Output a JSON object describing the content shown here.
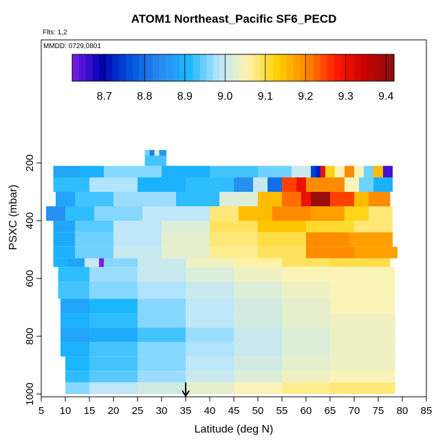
{
  "chart_data": {
    "type": "heatmap",
    "title": "ATOM1 Northeast_Pacific SF6_PECD",
    "flights_label": "Flts: 1,2",
    "mmdd_label": "MMDD: 0729,0801",
    "xlabel": "Latitude (deg N)",
    "ylabel": "PSXC (mbar)",
    "xlim": [
      5,
      85
    ],
    "ylim": [
      1000,
      0
    ],
    "x_ticks": [
      5,
      10,
      15,
      20,
      25,
      30,
      35,
      40,
      45,
      50,
      55,
      60,
      65,
      70,
      75,
      80,
      85
    ],
    "y_ticks": [
      200,
      400,
      600,
      800,
      1000
    ],
    "colorbar": {
      "range": [
        8.62,
        9.42
      ],
      "ticks": [
        8.7,
        8.8,
        8.9,
        9.0,
        9.1,
        9.2,
        9.3,
        9.4
      ],
      "tick_labels": [
        "8.7",
        "8.8",
        "8.9",
        "9.0",
        "9.1",
        "9.2",
        "9.3",
        "9.4"
      ],
      "colors": [
        "#7b1fe8",
        "#0000b4",
        "#0055dd",
        "#2a8af0",
        "#1ab8ff",
        "#b8e6ff",
        "#fff4b0",
        "#ffd000",
        "#ff8a00",
        "#ff1a00",
        "#c80000",
        "#8a1010"
      ]
    },
    "arrow_latitude": 35,
    "grid": false,
    "layers": [
      {
        "p_top": 155,
        "p_bottom": 175,
        "lat_min": 26.5,
        "lat_max": 31,
        "cells": [
          [
            26.5,
            27.5,
            8.95
          ],
          [
            27.5,
            28.5,
            8.82
          ],
          [
            28.5,
            29.5,
            9.02
          ],
          [
            29.5,
            31,
            8.86
          ]
        ]
      },
      {
        "p_top": 175,
        "p_bottom": 210,
        "lat_min": 26.5,
        "lat_max": 31,
        "cells": [
          [
            26.5,
            31,
            8.93
          ]
        ]
      },
      {
        "p_top": 210,
        "p_bottom": 250,
        "lat_min": 7.5,
        "lat_max": 78,
        "cells": [
          [
            7.5,
            13,
            8.88
          ],
          [
            13,
            18,
            8.9
          ],
          [
            18,
            30,
            8.96
          ],
          [
            30,
            40,
            8.9
          ],
          [
            40,
            50,
            8.93
          ],
          [
            50,
            57,
            8.95
          ],
          [
            57,
            61,
            9.0
          ],
          [
            61,
            62,
            8.75
          ],
          [
            62,
            63,
            8.72
          ],
          [
            63,
            64,
            9.3
          ],
          [
            64,
            66,
            9.12
          ],
          [
            66,
            68,
            9.05
          ],
          [
            68,
            70,
            9.2
          ],
          [
            70,
            72,
            9.05
          ],
          [
            72,
            74,
            8.95
          ],
          [
            74,
            76,
            9.15
          ],
          [
            76,
            78,
            8.65
          ]
        ]
      },
      {
        "p_top": 250,
        "p_bottom": 300,
        "lat_min": 7.5,
        "lat_max": 78,
        "cells": [
          [
            7.5,
            15,
            8.92
          ],
          [
            15,
            25,
            8.98
          ],
          [
            25,
            35,
            8.9
          ],
          [
            35,
            45,
            8.92
          ],
          [
            45,
            49,
            8.85
          ],
          [
            49,
            52,
            9.0
          ],
          [
            52,
            55,
            8.8
          ],
          [
            55,
            58,
            9.25
          ],
          [
            58,
            60,
            9.3
          ],
          [
            60,
            68,
            9.2
          ],
          [
            68,
            71,
            9.05
          ],
          [
            71,
            74,
            8.95
          ],
          [
            74,
            78,
            8.9
          ]
        ]
      },
      {
        "p_top": 300,
        "p_bottom": 350,
        "lat_min": 8,
        "lat_max": 77.5,
        "cells": [
          [
            8,
            12,
            8.88
          ],
          [
            12,
            20,
            8.93
          ],
          [
            20,
            33,
            8.97
          ],
          [
            33,
            42,
            8.92
          ],
          [
            42,
            50,
            9.02
          ],
          [
            50,
            55,
            9.15
          ],
          [
            55,
            59,
            9.22
          ],
          [
            59,
            61,
            9.3
          ],
          [
            61,
            65,
            9.4
          ],
          [
            65,
            70,
            9.25
          ],
          [
            70,
            73,
            9.15
          ],
          [
            73,
            77.5,
            9.2
          ]
        ]
      },
      {
        "p_top": 350,
        "p_bottom": 400,
        "lat_min": 6,
        "lat_max": 78,
        "cells": [
          [
            6,
            10,
            8.85
          ],
          [
            10,
            16,
            8.92
          ],
          [
            16,
            26,
            8.96
          ],
          [
            26,
            40,
            8.99
          ],
          [
            40,
            46,
            9.08
          ],
          [
            46,
            53,
            9.15
          ],
          [
            53,
            61,
            9.2
          ],
          [
            61,
            68,
            9.18
          ],
          [
            68,
            73,
            9.12
          ],
          [
            73,
            78,
            9.08
          ]
        ]
      },
      {
        "p_top": 400,
        "p_bottom": 440,
        "lat_min": 7.5,
        "lat_max": 78,
        "cells": [
          [
            7.5,
            12,
            8.88
          ],
          [
            12,
            20,
            8.94
          ],
          [
            20,
            30,
            8.99
          ],
          [
            30,
            40,
            9.02
          ],
          [
            40,
            50,
            9.09
          ],
          [
            50,
            60,
            9.14
          ],
          [
            60,
            70,
            9.11
          ],
          [
            70,
            78,
            9.08
          ]
        ]
      },
      {
        "p_top": 440,
        "p_bottom": 490,
        "lat_min": 7.5,
        "lat_max": 78,
        "cells": [
          [
            7.5,
            12,
            8.89
          ],
          [
            12,
            20,
            8.95
          ],
          [
            20,
            30,
            8.99
          ],
          [
            30,
            40,
            9.03
          ],
          [
            40,
            50,
            9.08
          ],
          [
            50,
            60,
            9.1
          ],
          [
            60,
            69,
            9.2
          ],
          [
            69,
            78,
            9.18
          ]
        ]
      },
      {
        "p_top": 490,
        "p_bottom": 530,
        "lat_min": 7.5,
        "lat_max": 79,
        "cells": [
          [
            7.5,
            12,
            8.9
          ],
          [
            12,
            20,
            8.95
          ],
          [
            20,
            30,
            9.0
          ],
          [
            30,
            40,
            9.03
          ],
          [
            40,
            50,
            9.07
          ],
          [
            50,
            60,
            9.09
          ],
          [
            60,
            70,
            9.2
          ],
          [
            70,
            79,
            9.18
          ]
        ]
      },
      {
        "p_top": 530,
        "p_bottom": 560,
        "lat_min": 7.5,
        "lat_max": 77.5,
        "cells": [
          [
            7.5,
            10.5,
            8.9
          ],
          [
            10.5,
            14,
            8.88
          ],
          [
            14,
            17,
            9.0
          ],
          [
            17,
            18,
            8.62
          ],
          [
            18,
            25,
            8.96
          ],
          [
            25,
            35,
            9.0
          ],
          [
            35,
            45,
            9.04
          ],
          [
            45,
            55,
            9.06
          ],
          [
            55,
            65,
            9.09
          ],
          [
            65,
            77.5,
            9.1
          ]
        ]
      },
      {
        "p_top": 560,
        "p_bottom": 610,
        "lat_min": 8.5,
        "lat_max": 78.5,
        "cells": [
          [
            8.5,
            15,
            8.92
          ],
          [
            15,
            25,
            8.97
          ],
          [
            25,
            35,
            9.0
          ],
          [
            35,
            45,
            9.02
          ],
          [
            45,
            55,
            9.04
          ],
          [
            55,
            65,
            9.05
          ],
          [
            65,
            78.5,
            9.05
          ]
        ]
      },
      {
        "p_top": 610,
        "p_bottom": 670,
        "lat_min": 8.5,
        "lat_max": 78.5,
        "cells": [
          [
            8.5,
            15,
            8.93
          ],
          [
            15,
            25,
            8.96
          ],
          [
            25,
            35,
            8.98
          ],
          [
            35,
            45,
            9.0
          ],
          [
            45,
            55,
            9.02
          ],
          [
            55,
            65,
            9.04
          ],
          [
            65,
            78.5,
            9.05
          ]
        ]
      },
      {
        "p_top": 670,
        "p_bottom": 720,
        "lat_min": 9,
        "lat_max": 78.5,
        "cells": [
          [
            9,
            15,
            8.88
          ],
          [
            15,
            25,
            8.91
          ],
          [
            25,
            35,
            8.96
          ],
          [
            35,
            45,
            8.99
          ],
          [
            45,
            55,
            9.01
          ],
          [
            55,
            65,
            9.03
          ],
          [
            65,
            78.5,
            9.05
          ]
        ]
      },
      {
        "p_top": 720,
        "p_bottom": 770,
        "lat_min": 9,
        "lat_max": 78.5,
        "cells": [
          [
            9,
            15,
            8.9
          ],
          [
            15,
            25,
            8.92
          ],
          [
            25,
            35,
            8.96
          ],
          [
            35,
            45,
            8.99
          ],
          [
            45,
            55,
            9.01
          ],
          [
            55,
            65,
            9.03
          ],
          [
            65,
            78.5,
            9.04
          ]
        ]
      },
      {
        "p_top": 770,
        "p_bottom": 820,
        "lat_min": 9,
        "lat_max": 78.5,
        "cells": [
          [
            9,
            15,
            8.88
          ],
          [
            15,
            25,
            8.89
          ],
          [
            25,
            35,
            8.93
          ],
          [
            35,
            45,
            8.97
          ],
          [
            45,
            55,
            9.0
          ],
          [
            55,
            65,
            9.02
          ],
          [
            65,
            78.5,
            9.04
          ]
        ]
      },
      {
        "p_top": 820,
        "p_bottom": 870,
        "lat_min": 9,
        "lat_max": 78.5,
        "cells": [
          [
            9,
            15,
            8.9
          ],
          [
            15,
            25,
            8.93
          ],
          [
            25,
            35,
            8.96
          ],
          [
            35,
            45,
            8.98
          ],
          [
            45,
            55,
            9.0
          ],
          [
            55,
            65,
            9.02
          ],
          [
            65,
            78.5,
            9.04
          ]
        ]
      },
      {
        "p_top": 870,
        "p_bottom": 920,
        "lat_min": 10,
        "lat_max": 78.5,
        "cells": [
          [
            10,
            15,
            8.91
          ],
          [
            15,
            25,
            8.93
          ],
          [
            25,
            35,
            8.96
          ],
          [
            35,
            45,
            8.99
          ],
          [
            45,
            55,
            9.01
          ],
          [
            55,
            65,
            9.03
          ],
          [
            65,
            78.5,
            9.04
          ]
        ]
      },
      {
        "p_top": 920,
        "p_bottom": 960,
        "lat_min": 10,
        "lat_max": 78.5,
        "cells": [
          [
            10,
            15,
            8.92
          ],
          [
            15,
            25,
            8.94
          ],
          [
            25,
            35,
            8.97
          ],
          [
            35,
            45,
            9.0
          ],
          [
            45,
            55,
            9.02
          ],
          [
            55,
            65,
            9.04
          ],
          [
            65,
            78.5,
            9.05
          ]
        ]
      },
      {
        "p_top": 960,
        "p_bottom": 1000,
        "lat_min": 10,
        "lat_max": 78.5,
        "cells": [
          [
            10,
            15,
            8.96
          ],
          [
            15,
            25,
            8.99
          ],
          [
            25,
            35,
            9.01
          ],
          [
            35,
            45,
            9.03
          ],
          [
            45,
            55,
            9.05
          ],
          [
            55,
            65,
            9.07
          ],
          [
            65,
            78.5,
            9.08
          ]
        ]
      }
    ]
  }
}
